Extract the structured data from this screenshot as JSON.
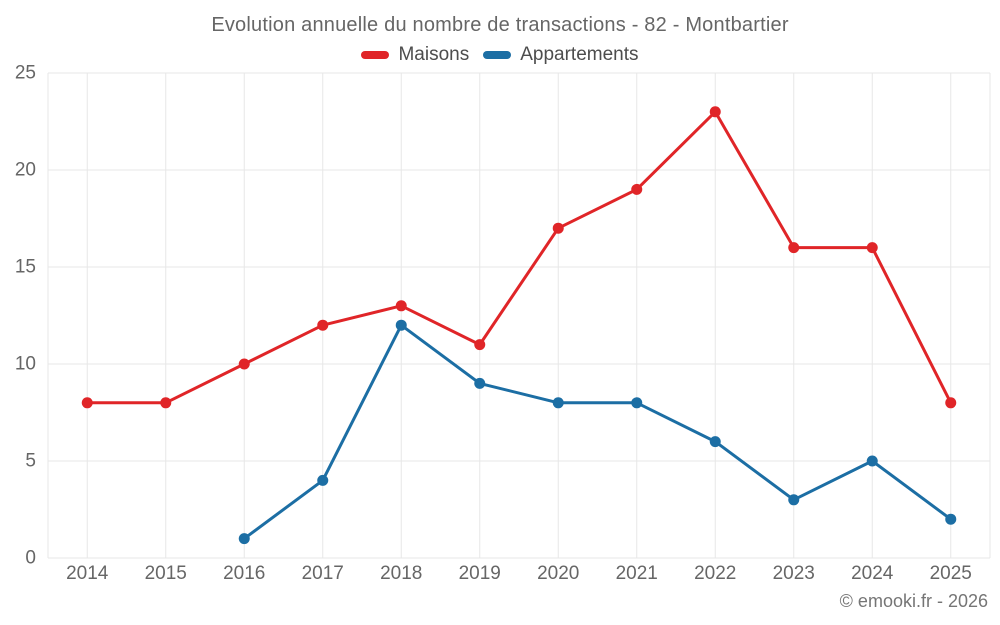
{
  "title": "Evolution annuelle du nombre de transactions - 82 - Montbartier",
  "legend": [
    {
      "label": "Maisons",
      "color": "#e02528"
    },
    {
      "label": "Appartements",
      "color": "#1c6ea4"
    }
  ],
  "footer": {
    "copyright": "© emooki.fr - 2026"
  },
  "colors": {
    "maisons": "#e02528",
    "appartements": "#1c6ea4",
    "grid": "#e7e7e7",
    "axis_text": "#666666",
    "title_text": "#666666"
  },
  "chart_data": {
    "type": "line",
    "title": "Evolution annuelle du nombre de transactions - 82 - Montbartier",
    "x": [
      2014,
      2015,
      2016,
      2017,
      2018,
      2019,
      2020,
      2021,
      2022,
      2023,
      2024,
      2025
    ],
    "series": [
      {
        "name": "Maisons",
        "color": "#e02528",
        "values": [
          8,
          8,
          10,
          12,
          13,
          11,
          17,
          19,
          23,
          16,
          16,
          8
        ]
      },
      {
        "name": "Appartements",
        "color": "#1c6ea4",
        "values": [
          null,
          null,
          1,
          4,
          12,
          9,
          8,
          8,
          6,
          3,
          5,
          2
        ]
      }
    ],
    "xlabel": "",
    "ylabel": "",
    "ylim": [
      0,
      25
    ],
    "yticks": [
      0,
      5,
      10,
      15,
      20,
      25
    ],
    "grid": true,
    "legend_position": "top"
  }
}
